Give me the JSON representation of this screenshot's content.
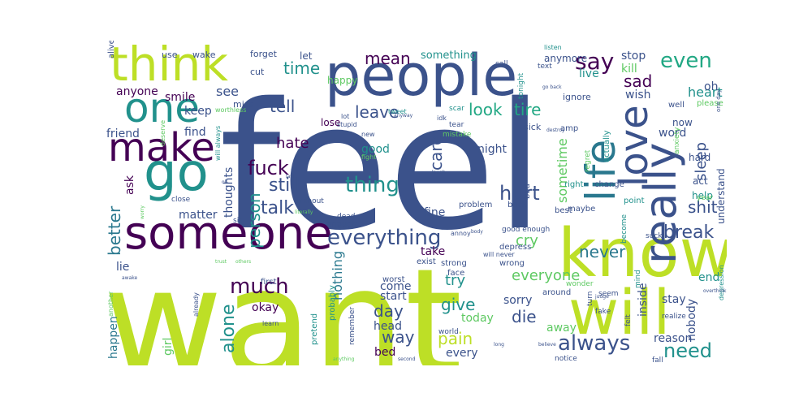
{
  "words": [
    {
      "text": "want",
      "color": "#bddf26"
    },
    {
      "text": "feel",
      "color": "#3b528b"
    },
    {
      "text": "people",
      "color": "#3b528b"
    },
    {
      "text": "know",
      "color": "#bddf26"
    },
    {
      "text": "will",
      "color": "#bddf26"
    },
    {
      "text": "someone",
      "color": "#440154"
    },
    {
      "text": "think",
      "color": "#bddf26"
    },
    {
      "text": "go",
      "color": "#21918c"
    },
    {
      "text": "make",
      "color": "#440154"
    },
    {
      "text": "one",
      "color": "#21918c"
    },
    {
      "text": "really",
      "color": "#3b528b"
    },
    {
      "text": "love",
      "color": "#3b528b"
    },
    {
      "text": "life",
      "color": "#2a788e"
    },
    {
      "text": "everything",
      "color": "#3b528b"
    },
    {
      "text": "say",
      "color": "#440154"
    },
    {
      "text": "even",
      "color": "#22a884"
    },
    {
      "text": "always",
      "color": "#3b528b"
    },
    {
      "text": "much",
      "color": "#440154"
    },
    {
      "text": "fuck",
      "color": "#440154"
    },
    {
      "text": "thing",
      "color": "#21918c"
    },
    {
      "text": "talk",
      "color": "#3b528b"
    },
    {
      "text": "still",
      "color": "#3b528b"
    },
    {
      "text": "hurt",
      "color": "#3b528b"
    },
    {
      "text": "sad",
      "color": "#440154"
    },
    {
      "text": "need",
      "color": "#21918c"
    },
    {
      "text": "shit",
      "color": "#3b528b"
    },
    {
      "text": "break",
      "color": "#3b528b"
    },
    {
      "text": "never",
      "color": "#2a788e"
    },
    {
      "text": "alone",
      "color": "#21918c"
    },
    {
      "text": "better",
      "color": "#2a788e"
    },
    {
      "text": "person",
      "color": "#21918c"
    },
    {
      "text": "time",
      "color": "#21918c"
    },
    {
      "text": "tell",
      "color": "#3b528b"
    },
    {
      "text": "leave",
      "color": "#3b528b"
    },
    {
      "text": "look",
      "color": "#22a884"
    },
    {
      "text": "tire",
      "color": "#22a884"
    },
    {
      "text": "mean",
      "color": "#440154"
    },
    {
      "text": "care",
      "color": "#3b528b"
    },
    {
      "text": "hate",
      "color": "#440154"
    },
    {
      "text": "sleep",
      "color": "#3b528b"
    },
    {
      "text": "pain",
      "color": "#bddf26"
    },
    {
      "text": "day",
      "color": "#3b528b"
    },
    {
      "text": "way",
      "color": "#3b528b"
    },
    {
      "text": "give",
      "color": "#21918c"
    },
    {
      "text": "die",
      "color": "#3b528b"
    },
    {
      "text": "cry",
      "color": "#5ec962"
    },
    {
      "text": "try",
      "color": "#21918c"
    },
    {
      "text": "everyone",
      "color": "#5ec962"
    },
    {
      "text": "nothing",
      "color": "#2a788e"
    },
    {
      "text": "see",
      "color": "#3b528b"
    },
    {
      "text": "sometime",
      "color": "#5ec962"
    },
    {
      "text": "heart",
      "color": "#21918c"
    },
    {
      "text": "kill",
      "color": "#5ec962"
    },
    {
      "text": "stop",
      "color": "#3b528b"
    },
    {
      "text": "live",
      "color": "#21918c"
    },
    {
      "text": "oh",
      "color": "#3b528b"
    },
    {
      "text": "wish",
      "color": "#3b528b"
    },
    {
      "text": "end",
      "color": "#21918c"
    },
    {
      "text": "okay",
      "color": "#440154"
    },
    {
      "text": "fine",
      "color": "#3b528b"
    },
    {
      "text": "good",
      "color": "#21918c"
    },
    {
      "text": "night",
      "color": "#3b528b"
    },
    {
      "text": "anyone",
      "color": "#440154"
    },
    {
      "text": "smile",
      "color": "#440154"
    },
    {
      "text": "keep",
      "color": "#3b528b"
    },
    {
      "text": "friend",
      "color": "#3b528b"
    },
    {
      "text": "find",
      "color": "#3b528b"
    },
    {
      "text": "thoughts",
      "color": "#3b528b"
    },
    {
      "text": "ask",
      "color": "#440154"
    },
    {
      "text": "matter",
      "color": "#3b528b"
    },
    {
      "text": "lie",
      "color": "#3b528b"
    },
    {
      "text": "happen",
      "color": "#2a788e"
    },
    {
      "text": "girl",
      "color": "#5ec962"
    },
    {
      "text": "take",
      "color": "#440154"
    },
    {
      "text": "start",
      "color": "#3b528b"
    },
    {
      "text": "come",
      "color": "#3b528b"
    },
    {
      "text": "head",
      "color": "#3b528b"
    },
    {
      "text": "today",
      "color": "#5ec962"
    },
    {
      "text": "sorry",
      "color": "#3b528b"
    },
    {
      "text": "away",
      "color": "#5ec962"
    },
    {
      "text": "stay",
      "color": "#3b528b"
    },
    {
      "text": "inside",
      "color": "#3b528b"
    },
    {
      "text": "reason",
      "color": "#3b528b"
    },
    {
      "text": "nobody",
      "color": "#3b528b"
    },
    {
      "text": "bed",
      "color": "#440154"
    },
    {
      "text": "every",
      "color": "#3b528b"
    },
    {
      "text": "word",
      "color": "#3b528b"
    },
    {
      "text": "hard",
      "color": "#3b528b"
    },
    {
      "text": "act",
      "color": "#3b528b"
    },
    {
      "text": "help",
      "color": "#21918c"
    },
    {
      "text": "understand",
      "color": "#3b528b"
    },
    {
      "text": "now",
      "color": "#3b528b"
    },
    {
      "text": "something",
      "color": "#21918c"
    },
    {
      "text": "anymore",
      "color": "#3b528b"
    },
    {
      "text": "happy",
      "color": "#5ec962"
    },
    {
      "text": "let",
      "color": "#3b528b"
    },
    {
      "text": "forget",
      "color": "#3b528b"
    },
    {
      "text": "wake",
      "color": "#3b528b"
    },
    {
      "text": "use",
      "color": "#3b528b"
    },
    {
      "text": "alive",
      "color": "#3b528b"
    },
    {
      "text": "cut",
      "color": "#3b528b"
    },
    {
      "text": "miss",
      "color": "#3b528b"
    },
    {
      "text": "lose",
      "color": "#440154"
    },
    {
      "text": "ignore",
      "color": "#3b528b"
    },
    {
      "text": "actually",
      "color": "#21918c"
    },
    {
      "text": "sick",
      "color": "#3b528b"
    },
    {
      "text": "amp",
      "color": "#3b528b"
    },
    {
      "text": "change",
      "color": "#3b528b"
    },
    {
      "text": "point",
      "color": "#21918c"
    },
    {
      "text": "maybe",
      "color": "#3b528b"
    },
    {
      "text": "best",
      "color": "#3b528b"
    },
    {
      "text": "right",
      "color": "#21918c"
    },
    {
      "text": "bad",
      "color": "#3b528b"
    },
    {
      "text": "back",
      "color": "#3b528b"
    },
    {
      "text": "problem",
      "color": "#3b528b"
    },
    {
      "text": "dead",
      "color": "#3b528b"
    },
    {
      "text": "without",
      "color": "#3b528b"
    },
    {
      "text": "close",
      "color": "#3b528b"
    },
    {
      "text": "sit",
      "color": "#3b528b"
    },
    {
      "text": "enough",
      "color": "#3b528b"
    },
    {
      "text": "good enough",
      "color": "#3b528b"
    },
    {
      "text": "exist",
      "color": "#3b528b"
    },
    {
      "text": "strong",
      "color": "#3b528b"
    },
    {
      "text": "wrong",
      "color": "#3b528b"
    },
    {
      "text": "depress",
      "color": "#3b528b"
    },
    {
      "text": "worst",
      "color": "#3b528b"
    },
    {
      "text": "face",
      "color": "#3b528b"
    },
    {
      "text": "first",
      "color": "#3b528b"
    },
    {
      "text": "probably",
      "color": "#21918c"
    },
    {
      "text": "pretend",
      "color": "#21918c"
    },
    {
      "text": "remember",
      "color": "#3b528b"
    },
    {
      "text": "world",
      "color": "#3b528b"
    },
    {
      "text": "around",
      "color": "#3b528b"
    },
    {
      "text": "turn",
      "color": "#3b528b"
    },
    {
      "text": "seem",
      "color": "#3b528b"
    },
    {
      "text": "fake",
      "color": "#3b528b"
    },
    {
      "text": "felt",
      "color": "#3b528b"
    },
    {
      "text": "realize",
      "color": "#3b528b"
    },
    {
      "text": "mind",
      "color": "#21918c"
    },
    {
      "text": "wonder",
      "color": "#5ec962"
    },
    {
      "text": "notice",
      "color": "#3b528b"
    },
    {
      "text": "fall",
      "color": "#3b528b"
    },
    {
      "text": "become",
      "color": "#21918c"
    },
    {
      "text": "suck",
      "color": "#3b528b"
    },
    {
      "text": "anxiety",
      "color": "#5ec962"
    },
    {
      "text": "regret",
      "color": "#5ec962"
    },
    {
      "text": "year",
      "color": "#5ec962"
    },
    {
      "text": "depression",
      "color": "#21918c"
    },
    {
      "text": "well",
      "color": "#3b528b"
    },
    {
      "text": "please",
      "color": "#5ec962"
    },
    {
      "text": "tear",
      "color": "#3b528b"
    },
    {
      "text": "scar",
      "color": "#21918c"
    },
    {
      "text": "idk",
      "color": "#3b528b"
    },
    {
      "text": "tweet",
      "color": "#21918c"
    },
    {
      "text": "tonight",
      "color": "#21918c"
    },
    {
      "text": "call",
      "color": "#3b528b"
    },
    {
      "text": "text",
      "color": "#3b528b"
    },
    {
      "text": "listen",
      "color": "#21918c"
    },
    {
      "text": "mistake",
      "color": "#5ec962"
    },
    {
      "text": "fight",
      "color": "#5ec962"
    },
    {
      "text": "new",
      "color": "#3b528b"
    },
    {
      "text": "lot",
      "color": "#3b528b"
    },
    {
      "text": "stupid",
      "color": "#3b528b"
    },
    {
      "text": "worthless",
      "color": "#5ec962"
    },
    {
      "text": "deserve",
      "color": "#5ec962"
    },
    {
      "text": "will always",
      "color": "#21918c"
    },
    {
      "text": "will never",
      "color": "#3b528b"
    },
    {
      "text": "annoy",
      "color": "#3b528b"
    },
    {
      "text": "another",
      "color": "#5ec962"
    },
    {
      "text": "already",
      "color": "#3b528b"
    },
    {
      "text": "anything",
      "color": "#5ec962"
    },
    {
      "text": "second",
      "color": "#3b528b"
    },
    {
      "text": "learn",
      "color": "#3b528b"
    },
    {
      "text": "long",
      "color": "#3b528b"
    },
    {
      "text": "believe",
      "color": "#3b528b"
    },
    {
      "text": "destroy",
      "color": "#3b528b"
    },
    {
      "text": "one day",
      "color": "#3b528b"
    },
    {
      "text": "ok",
      "color": "#3b528b"
    },
    {
      "text": "worry",
      "color": "#5ec962"
    },
    {
      "text": "trust",
      "color": "#5ec962"
    },
    {
      "text": "others",
      "color": "#5ec962"
    },
    {
      "text": "awake",
      "color": "#3b528b"
    },
    {
      "text": "last",
      "color": "#3b528b"
    },
    {
      "text": "literally",
      "color": "#5ec962"
    },
    {
      "text": "go back",
      "color": "#3b528b"
    },
    {
      "text": "anyway",
      "color": "#3b528b"
    },
    {
      "text": "laugh",
      "color": "#3b528b"
    },
    {
      "text": "body",
      "color": "#3b528b"
    },
    {
      "text": "judge",
      "color": "#3b528b"
    },
    {
      "text": "overthinking",
      "color": "#3b528b"
    },
    {
      "text": "nice",
      "color": "#3b528b"
    }
  ]
}
